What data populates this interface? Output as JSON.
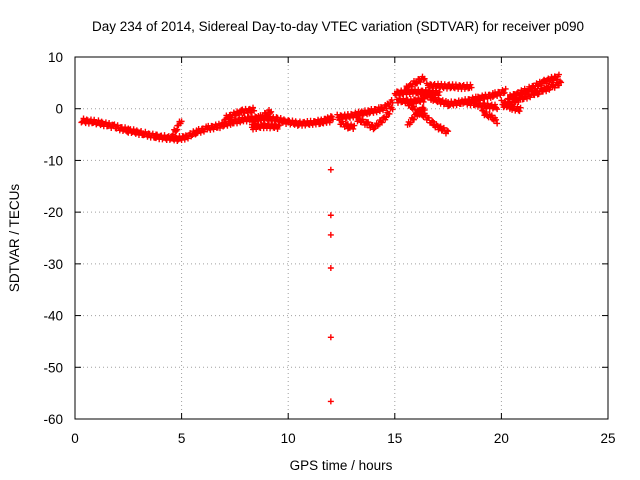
{
  "chart_data": {
    "type": "scatter",
    "title": "Day 234 of 2014, Sidereal Day-to-day VTEC variation (SDTVAR) for receiver p090",
    "xlabel": "GPS time / hours",
    "ylabel": "SDTVAR / TECUs",
    "xlim": [
      0,
      25
    ],
    "ylim": [
      -60,
      10
    ],
    "x_ticks": [
      0,
      5,
      10,
      15,
      20,
      25
    ],
    "y_ticks": [
      -60,
      -50,
      -40,
      -30,
      -20,
      -10,
      0,
      10
    ],
    "grid": true,
    "marker": "+",
    "series_color": "#ff0000",
    "series": [
      {
        "name": "SDTVAR",
        "tracks": [
          [
            [
              0.3,
              -2.3
            ],
            [
              1,
              -2.6
            ],
            [
              1.8,
              -3.4
            ],
            [
              2.5,
              -4.2
            ],
            [
              3.2,
              -4.8
            ],
            [
              3.8,
              -5.4
            ],
            [
              4.3,
              -5.6
            ],
            [
              4.8,
              -5.8
            ],
            [
              5.2,
              -5.5
            ],
            [
              5.7,
              -4.5
            ],
            [
              6.2,
              -3.8
            ],
            [
              6.8,
              -3.3
            ],
            [
              7.3,
              -2.7
            ],
            [
              7.9,
              -2.1
            ],
            [
              8.5,
              -1.8
            ],
            [
              9,
              -1.8
            ],
            [
              9.5,
              -2.1
            ],
            [
              10,
              -2.6
            ],
            [
              10.5,
              -2.9
            ],
            [
              11,
              -2.8
            ],
            [
              11.5,
              -2.5
            ],
            [
              12,
              -2.2
            ]
          ],
          [
            [
              4.6,
              -4.8
            ],
            [
              4.8,
              -3.6
            ],
            [
              5.0,
              -2.2
            ]
          ],
          [
            [
              7.0,
              -1.9
            ],
            [
              7.8,
              -0.6
            ],
            [
              8.4,
              -0.2
            ]
          ],
          [
            [
              8.3,
              -2.8
            ],
            [
              8.8,
              -1.4
            ],
            [
              9.2,
              -0.4
            ]
          ],
          [
            [
              8.3,
              -3.6
            ],
            [
              8.9,
              -3.3
            ],
            [
              9.6,
              -3.5
            ]
          ],
          [
            [
              11.4,
              -2.8
            ],
            [
              11.8,
              -2.2
            ],
            [
              12.1,
              -1.6
            ]
          ],
          [
            [
              12.3,
              -1.6
            ],
            [
              12.8,
              -1.5
            ],
            [
              13.3,
              -1.0
            ],
            [
              13.8,
              -0.6
            ],
            [
              14.3,
              -0.1
            ],
            [
              14.6,
              0.4
            ],
            [
              14.9,
              1.5
            ]
          ],
          [
            [
              12.4,
              -2.6
            ],
            [
              12.8,
              -3.4
            ],
            [
              13.1,
              -3.5
            ]
          ],
          [
            [
              13.2,
              -1.9
            ],
            [
              13.7,
              -2.9
            ],
            [
              14.1,
              -3.8
            ]
          ],
          [
            [
              14.1,
              -3.4
            ],
            [
              14.6,
              -1.5
            ],
            [
              14.9,
              0.3
            ]
          ],
          [
            [
              15.0,
              3.0
            ],
            [
              15.8,
              3.3
            ],
            [
              16.5,
              3.2
            ],
            [
              17.1,
              3.0
            ]
          ],
          [
            [
              15.1,
              1.6
            ],
            [
              15.8,
              1.4
            ],
            [
              16.4,
              1.8
            ]
          ],
          [
            [
              15.5,
              3.8
            ],
            [
              16.0,
              5.2
            ],
            [
              16.4,
              6.0
            ]
          ],
          [
            [
              16.5,
              4.5
            ],
            [
              17.5,
              4.3
            ],
            [
              18.6,
              4.2
            ]
          ],
          [
            [
              16.2,
              3.3
            ],
            [
              16.8,
              1.9
            ],
            [
              17.5,
              0.9
            ],
            [
              18.1,
              1.2
            ],
            [
              18.8,
              1.9
            ],
            [
              19.6,
              2.6
            ],
            [
              20.2,
              3.4
            ]
          ],
          [
            [
              15.5,
              1.6
            ],
            [
              16.0,
              -0.4
            ],
            [
              16.4,
              -1.4
            ]
          ],
          [
            [
              16.2,
              -0.4
            ],
            [
              16.8,
              -3.0
            ],
            [
              17.5,
              -4.6
            ]
          ],
          [
            [
              15.6,
              -3.2
            ],
            [
              16.0,
              -1.2
            ],
            [
              16.4,
              0.2
            ]
          ],
          [
            [
              18.4,
              1.2
            ],
            [
              19.2,
              0.6
            ],
            [
              19.8,
              0.3
            ]
          ],
          [
            [
              19.1,
              -0.6
            ],
            [
              19.5,
              -1.6
            ],
            [
              19.8,
              -2.4
            ]
          ],
          [
            [
              20.1,
              0.6
            ],
            [
              20.9,
              1.9
            ],
            [
              21.7,
              3.2
            ],
            [
              22.4,
              4.3
            ],
            [
              22.8,
              5.0
            ]
          ],
          [
            [
              20.3,
              2.1
            ],
            [
              21.2,
              3.6
            ],
            [
              22.0,
              5.2
            ],
            [
              22.7,
              6.2
            ]
          ],
          [
            [
              20.0,
              1.2
            ],
            [
              20.5,
              0.2
            ],
            [
              20.9,
              -0.2
            ]
          ]
        ],
        "isolated_points": [
          [
            12,
            -11.8
          ],
          [
            12,
            -20.6
          ],
          [
            12,
            -24.4
          ],
          [
            12,
            -30.8
          ],
          [
            12,
            -44.2
          ],
          [
            12,
            -56.6
          ]
        ]
      }
    ]
  }
}
